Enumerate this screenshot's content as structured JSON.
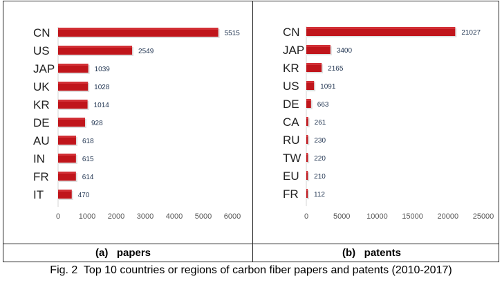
{
  "chart_data": [
    {
      "type": "bar",
      "orientation": "horizontal",
      "panel_label": "(a)   papers",
      "categories": [
        "CN",
        "US",
        "JAP",
        "UK",
        "KR",
        "DE",
        "AU",
        "IN",
        "FR",
        "IT"
      ],
      "values": [
        5515,
        2549,
        1039,
        1028,
        1014,
        928,
        618,
        615,
        614,
        470
      ],
      "value_labels": [
        "5515",
        "2549",
        "1039",
        "1028",
        "1014",
        "928",
        "618",
        "615",
        "614",
        "470"
      ],
      "xlim": [
        0,
        6000
      ],
      "xticks": [
        "0",
        "1000",
        "2000",
        "3000",
        "4000",
        "5000",
        "6000"
      ],
      "xtick_values": [
        0,
        1000,
        2000,
        3000,
        4000,
        5000,
        6000
      ],
      "bar_color": "#c0151b",
      "grid": false
    },
    {
      "type": "bar",
      "orientation": "horizontal",
      "panel_label": "(b)   patents",
      "categories": [
        "CN",
        "JAP",
        "KR",
        "US",
        "DE",
        "CA",
        "RU",
        "TW",
        "EU",
        "FR"
      ],
      "values": [
        21027,
        3400,
        2165,
        1091,
        663,
        261,
        230,
        220,
        210,
        112
      ],
      "value_labels": [
        "21027",
        "3400",
        "2165",
        "1091",
        "663",
        "261",
        "230",
        "220",
        "210",
        "112"
      ],
      "xlim": [
        0,
        25000
      ],
      "xticks": [
        "0",
        "5000",
        "10000",
        "15000",
        "20000",
        "25000"
      ],
      "xtick_values": [
        0,
        5000,
        10000,
        15000,
        20000,
        25000
      ],
      "bar_color": "#c0151b",
      "grid": false
    }
  ],
  "caption": "Fig. 2  Top 10 countries or regions of carbon fiber papers and patents (2010-2017)"
}
